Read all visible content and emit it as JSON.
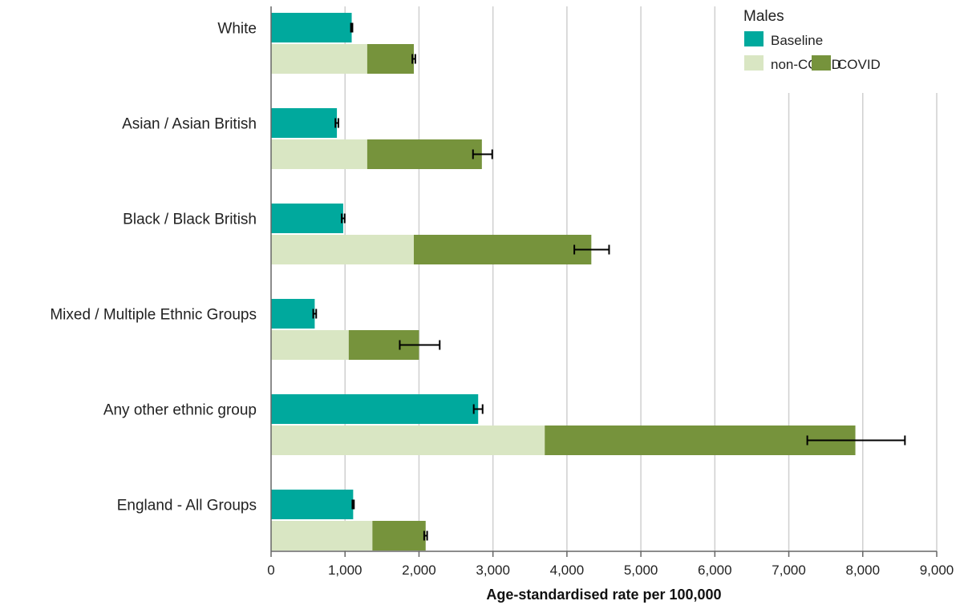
{
  "chart_data": {
    "type": "bar",
    "orientation": "horizontal",
    "stacked_second_bar": true,
    "categories": [
      "White",
      "Asian / Asian British",
      "Black / Black British",
      "Mixed / Multiple Ethnic Groups",
      "Any other ethnic group",
      "England - All Groups"
    ],
    "series": [
      {
        "name": "Baseline",
        "color": "#00A99D",
        "values": [
          1090,
          890,
          975,
          590,
          2800,
          1110
        ],
        "error_low": [
          1080,
          870,
          955,
          570,
          2740,
          1100
        ],
        "error_high": [
          1100,
          910,
          995,
          610,
          2860,
          1120
        ]
      },
      {
        "name": "non-COVID",
        "color": "#D9E6C3",
        "values": [
          1300,
          1300,
          1930,
          1050,
          3700,
          1370
        ]
      },
      {
        "name": "COVID",
        "color": "#76933C",
        "values": [
          630,
          1550,
          2400,
          950,
          4200,
          720
        ],
        "error_low": [
          1910,
          2730,
          4100,
          1740,
          7250,
          2070
        ],
        "error_high": [
          1950,
          2990,
          4570,
          2280,
          8570,
          2110
        ]
      }
    ],
    "xlabel": "Age-standardised rate per 100,000",
    "ylabel": "",
    "xlim": [
      0,
      9000
    ],
    "xticks": [
      "0",
      "1,000",
      "2,000",
      "3,000",
      "4,000",
      "5,000",
      "6,000",
      "7,000",
      "8,000",
      "9,000"
    ],
    "grid": "vertical",
    "legend": {
      "title": "Males",
      "placement": "top-right",
      "entries": [
        "Baseline",
        "non-COVID",
        "COVID"
      ]
    }
  }
}
